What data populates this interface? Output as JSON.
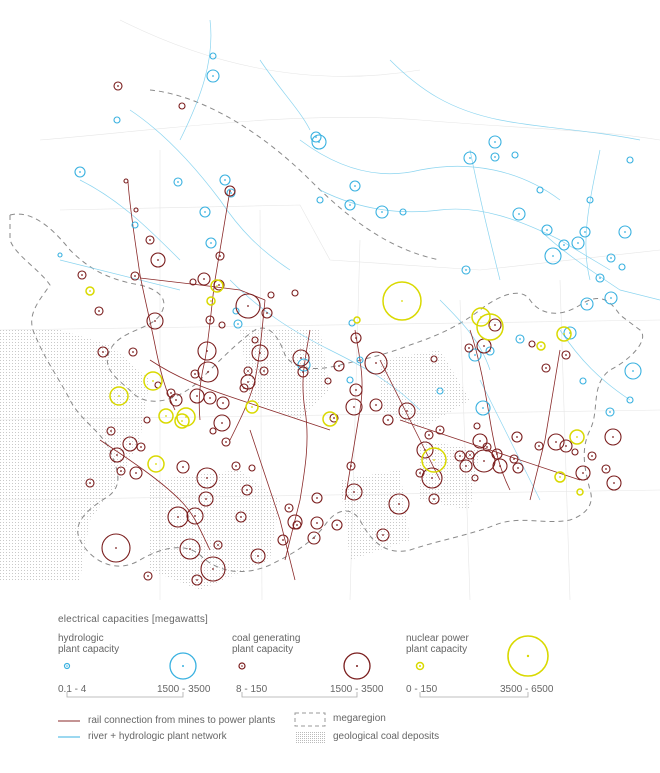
{
  "colors": {
    "hydro": "#39b1e0",
    "coal": "#7a1d1d",
    "nuclear": "#d9d900",
    "rail": "#8a2a2a",
    "river": "#7fd0ee",
    "megaregion": "#888888",
    "coal_deposit": "#bdbdbd",
    "base": "#e4e4e4"
  },
  "legend": {
    "title": "electrical capacities [megawatts]",
    "hydro": {
      "label_line1": "hydrologic",
      "label_line2": "plant capacity",
      "min": "0.1 - 4",
      "max": "1500 - 3500"
    },
    "coal": {
      "label_line1": "coal generating",
      "label_line2": "plant capacity",
      "min": "8 - 150",
      "max": "1500 - 3500"
    },
    "nuclear": {
      "label_line1": "nuclear power",
      "label_line2": "plant capacity",
      "min": "0 - 150",
      "max": "3500 - 6500"
    },
    "rail_label": "rail connection from mines to power plants",
    "river_label": "river + hydrologic plant network",
    "megaregion_label": "megaregion",
    "deposits_label": "geological coal deposits"
  }
}
